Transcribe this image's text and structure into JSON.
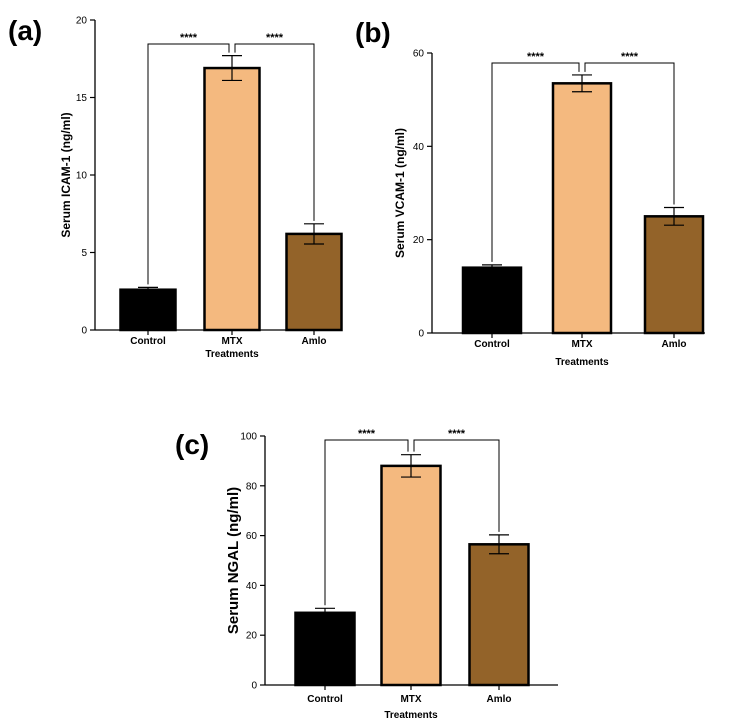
{
  "chart_data": [
    {
      "type": "bar",
      "panel": "(a)",
      "categories": [
        "Control",
        "MTX",
        "Amlo"
      ],
      "values": [
        2.6,
        16.9,
        6.2
      ],
      "errors": [
        0.15,
        0.8,
        0.65
      ],
      "colors": [
        "#000000",
        "#f4b97f",
        "#936329"
      ],
      "ylabel": "Serum ICAM-1  (ng/ml)",
      "xlabel": "Treatments",
      "ylim": [
        0,
        20
      ],
      "yticks": [
        0,
        5,
        10,
        15,
        20
      ],
      "significance": [
        {
          "from": 0,
          "to": 1,
          "label": "****"
        },
        {
          "from": 1,
          "to": 2,
          "label": "****"
        }
      ]
    },
    {
      "type": "bar",
      "panel": "(b)",
      "categories": [
        "Control",
        "MTX",
        "Amlo"
      ],
      "values": [
        14.0,
        53.5,
        25.0
      ],
      "errors": [
        0.6,
        1.8,
        1.9
      ],
      "colors": [
        "#000000",
        "#f4b97f",
        "#936329"
      ],
      "ylabel": "Serum VCAM-1 (ng/ml)",
      "xlabel": "Treatments",
      "ylim": [
        0,
        60
      ],
      "yticks": [
        0,
        20,
        40,
        60
      ],
      "significance": [
        {
          "from": 0,
          "to": 1,
          "label": "****"
        },
        {
          "from": 1,
          "to": 2,
          "label": "****"
        }
      ]
    },
    {
      "type": "bar",
      "panel": "(c)",
      "categories": [
        "Control",
        "MTX",
        "Amlo"
      ],
      "values": [
        29.0,
        88.0,
        56.5
      ],
      "errors": [
        1.8,
        4.5,
        3.8
      ],
      "colors": [
        "#000000",
        "#f4b97f",
        "#936329"
      ],
      "ylabel": "Serum NGAL (ng/ml)",
      "xlabel": "Treatments",
      "ylim": [
        0,
        100
      ],
      "yticks": [
        0,
        20,
        40,
        60,
        80,
        100
      ],
      "significance": [
        {
          "from": 0,
          "to": 1,
          "label": "****"
        },
        {
          "from": 1,
          "to": 2,
          "label": "****"
        }
      ]
    }
  ]
}
